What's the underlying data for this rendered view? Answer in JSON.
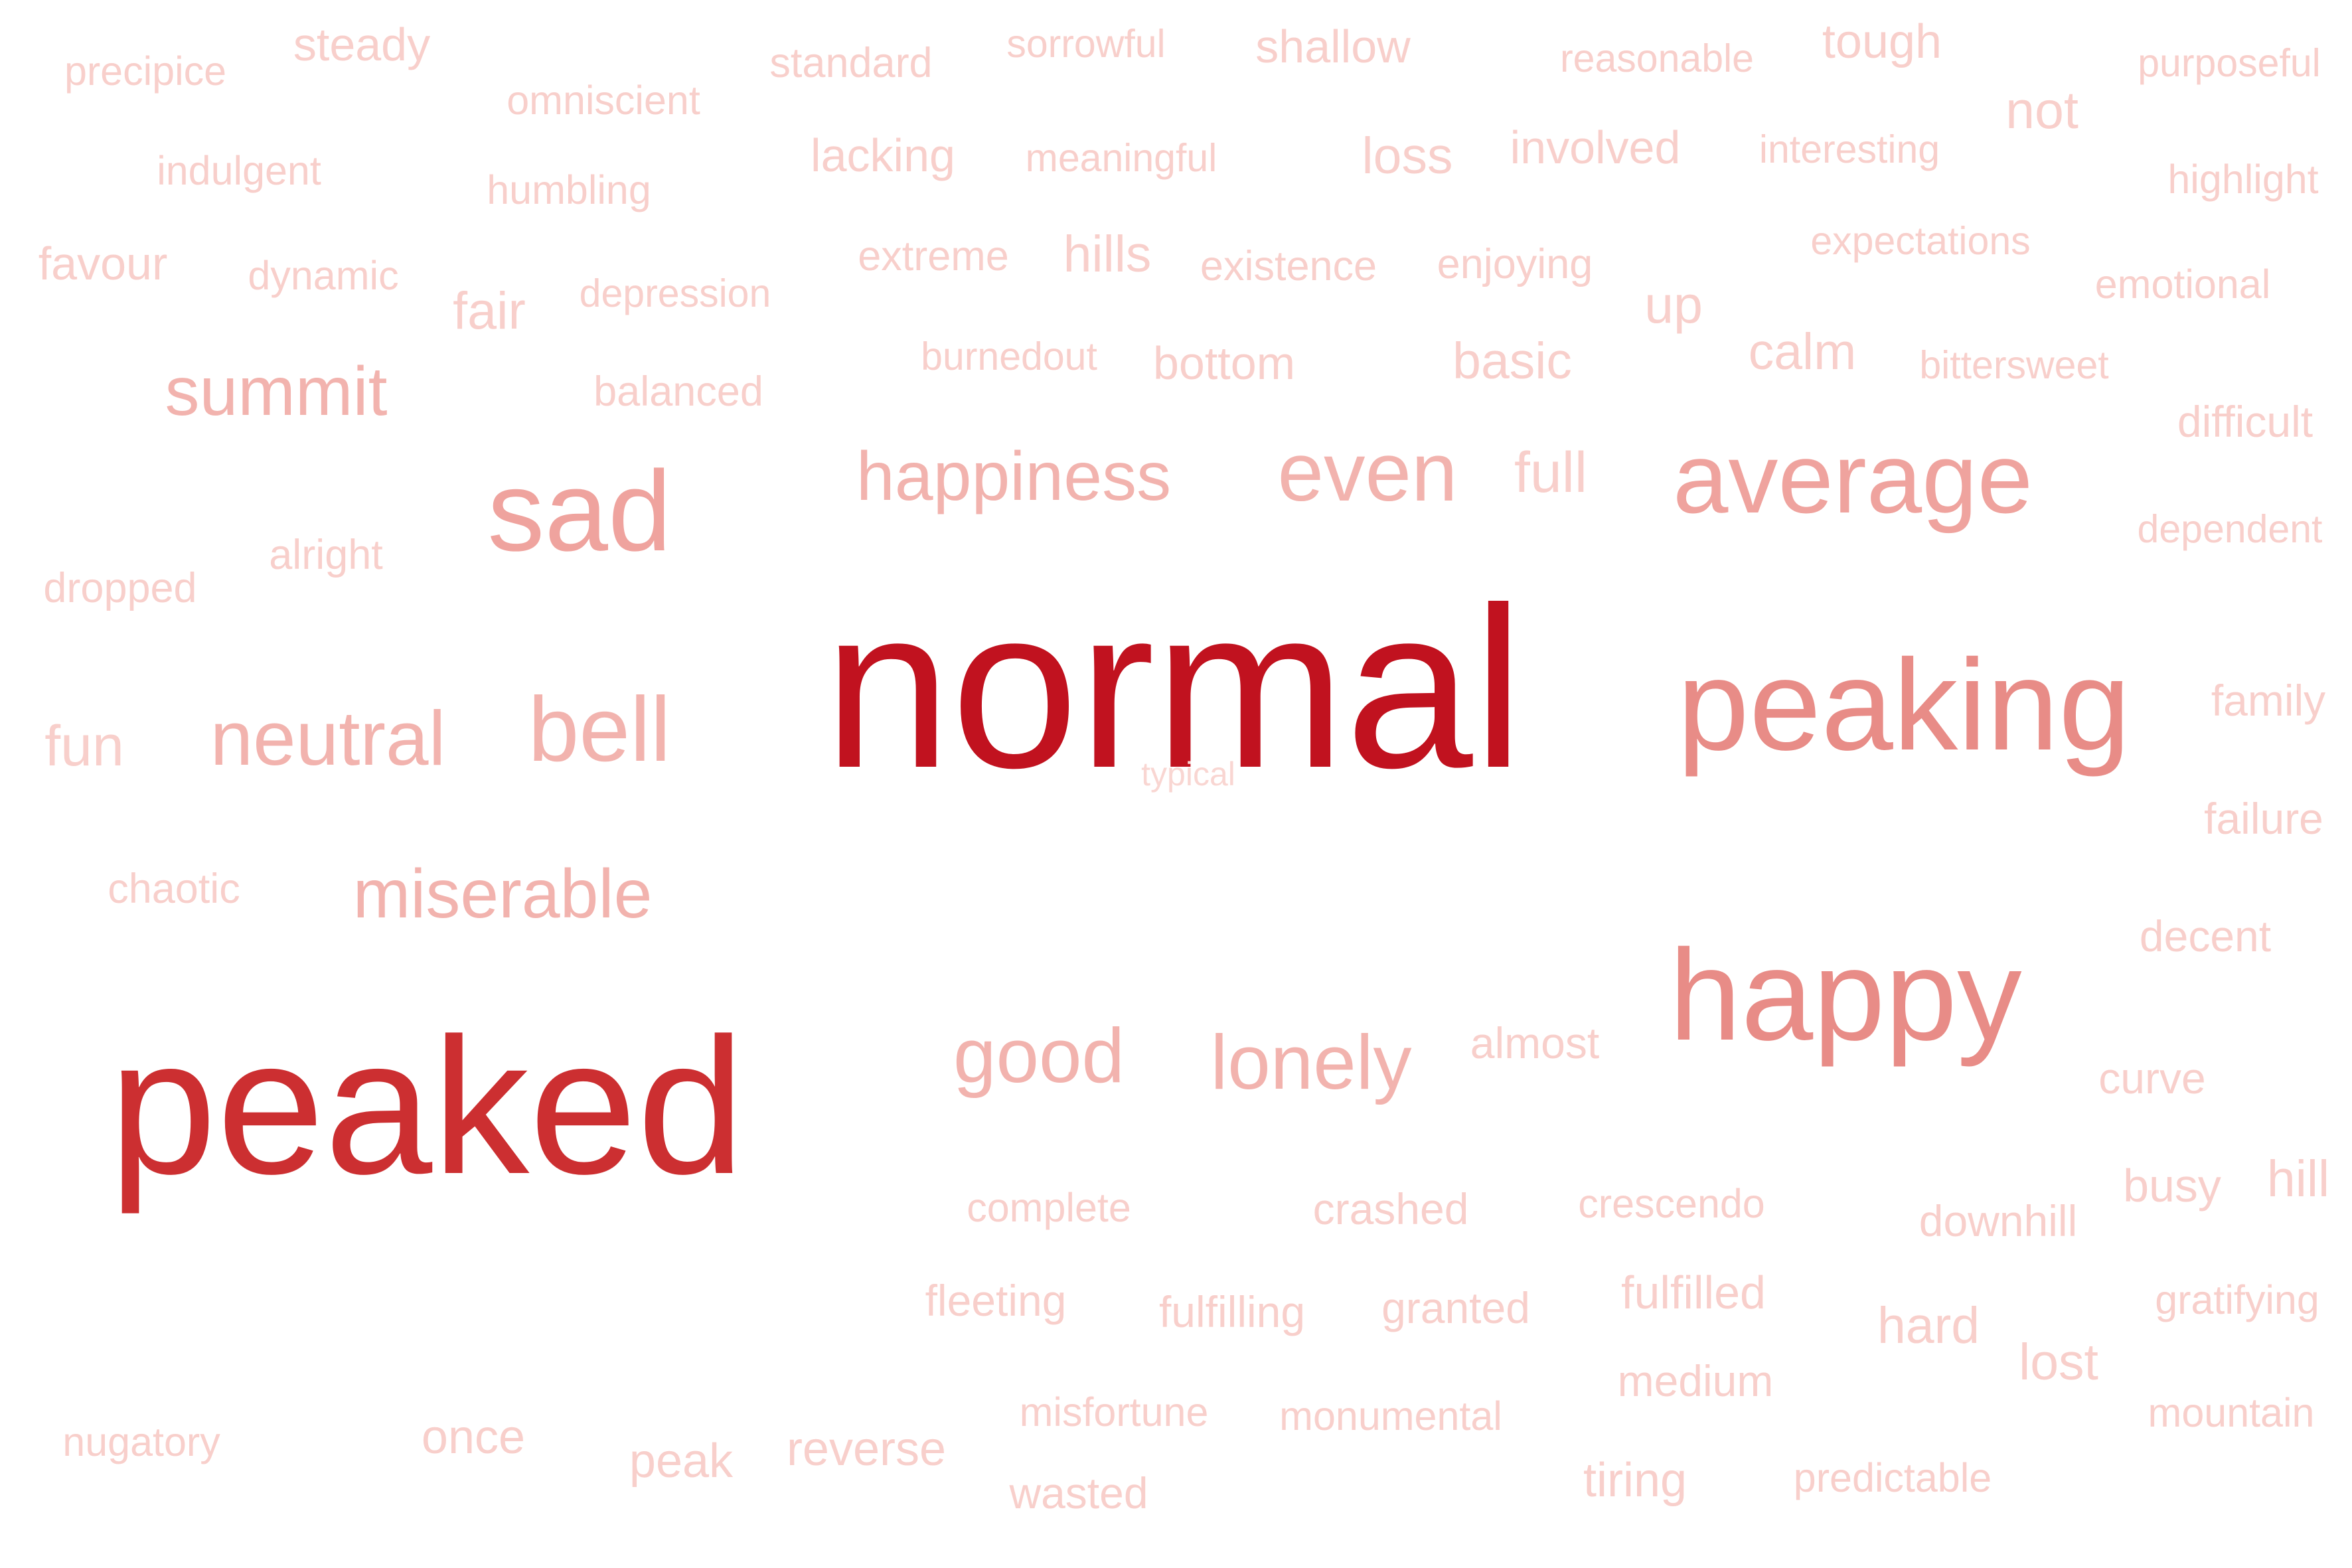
{
  "word_cloud": {
    "colors": {
      "background": "#ffffff",
      "strongest": "#c1121f",
      "strong": "#cc2f31",
      "medium": "#e88c87",
      "light": "#f2b3ae",
      "faint": "#f8cfcb"
    },
    "words": [
      {
        "text": "normal",
        "weight": 1.0,
        "color": "#c1121f"
      },
      {
        "text": "peaked",
        "weight": 0.84,
        "color": "#cc2f31"
      },
      {
        "text": "peaking",
        "weight": 0.56,
        "color": "#e88c87"
      },
      {
        "text": "happy",
        "weight": 0.56,
        "color": "#e88c87"
      },
      {
        "text": "sad",
        "weight": 0.5,
        "color": "#efa39e"
      },
      {
        "text": "average",
        "weight": 0.44,
        "color": "#efa39e"
      },
      {
        "text": "bell",
        "weight": 0.4,
        "color": "#f2b3ae"
      },
      {
        "text": "even",
        "weight": 0.36,
        "color": "#f2b3ae"
      },
      {
        "text": "neutral",
        "weight": 0.34,
        "color": "#f2b3ae"
      },
      {
        "text": "good",
        "weight": 0.34,
        "color": "#f2b3ae"
      },
      {
        "text": "lonely",
        "weight": 0.34,
        "color": "#f2b3ae"
      },
      {
        "text": "summit",
        "weight": 0.3,
        "color": "#f2b3ae"
      },
      {
        "text": "happiness",
        "weight": 0.3,
        "color": "#f2b3ae"
      },
      {
        "text": "miserable",
        "weight": 0.3,
        "color": "#f2b3ae"
      },
      {
        "text": "full",
        "weight": 0.25,
        "color": "#f8cfcb"
      },
      {
        "text": "fun",
        "weight": 0.25,
        "color": "#f8cfcb"
      },
      {
        "text": "not",
        "weight": 0.23,
        "color": "#f8cfcb"
      },
      {
        "text": "up",
        "weight": 0.23,
        "color": "#f8cfcb"
      },
      {
        "text": "fair",
        "weight": 0.23,
        "color": "#f8cfcb"
      },
      {
        "text": "loss",
        "weight": 0.22,
        "color": "#f8cfcb"
      },
      {
        "text": "hills",
        "weight": 0.22,
        "color": "#f8cfcb"
      },
      {
        "text": "basic",
        "weight": 0.22,
        "color": "#f8cfcb"
      },
      {
        "text": "calm",
        "weight": 0.22,
        "color": "#f8cfcb"
      },
      {
        "text": "hill",
        "weight": 0.22,
        "color": "#f8cfcb"
      },
      {
        "text": "hard",
        "weight": 0.22,
        "color": "#f8cfcb"
      },
      {
        "text": "lost",
        "weight": 0.22,
        "color": "#f8cfcb"
      },
      {
        "text": "once",
        "weight": 0.21,
        "color": "#f8cfcb"
      },
      {
        "text": "peak",
        "weight": 0.21,
        "color": "#f8cfcb"
      },
      {
        "text": "reverse",
        "weight": 0.21,
        "color": "#f8cfcb"
      },
      {
        "text": "tiring",
        "weight": 0.21,
        "color": "#f8cfcb"
      },
      {
        "text": "tough",
        "weight": 0.21,
        "color": "#f8cfcb"
      },
      {
        "text": "bottom",
        "weight": 0.2,
        "color": "#f8cfcb"
      },
      {
        "text": "favour",
        "weight": 0.2,
        "color": "#f8cfcb"
      },
      {
        "text": "steady",
        "weight": 0.2,
        "color": "#f8cfcb"
      },
      {
        "text": "involved",
        "weight": 0.2,
        "color": "#f8cfcb"
      },
      {
        "text": "lacking",
        "weight": 0.2,
        "color": "#f8cfcb"
      },
      {
        "text": "shallow",
        "weight": 0.2,
        "color": "#f8cfcb"
      },
      {
        "text": "busy",
        "weight": 0.2,
        "color": "#f8cfcb"
      },
      {
        "text": "fulfilled",
        "weight": 0.2,
        "color": "#f8cfcb"
      },
      {
        "text": "granted",
        "weight": 0.19,
        "color": "#f8cfcb"
      },
      {
        "text": "fulfilling",
        "weight": 0.19,
        "color": "#f8cfcb"
      },
      {
        "text": "fleeting",
        "weight": 0.19,
        "color": "#f8cfcb"
      },
      {
        "text": "crashed",
        "weight": 0.19,
        "color": "#f8cfcb"
      },
      {
        "text": "curve",
        "weight": 0.19,
        "color": "#f8cfcb"
      },
      {
        "text": "wasted",
        "weight": 0.19,
        "color": "#f8cfcb"
      },
      {
        "text": "medium",
        "weight": 0.19,
        "color": "#f8cfcb"
      },
      {
        "text": "downhill",
        "weight": 0.19,
        "color": "#f8cfcb"
      },
      {
        "text": "failure",
        "weight": 0.19,
        "color": "#f8cfcb"
      },
      {
        "text": "decent",
        "weight": 0.19,
        "color": "#f8cfcb"
      },
      {
        "text": "family",
        "weight": 0.19,
        "color": "#f8cfcb"
      },
      {
        "text": "almost",
        "weight": 0.19,
        "color": "#f8cfcb"
      },
      {
        "text": "difficult",
        "weight": 0.19,
        "color": "#f8cfcb"
      },
      {
        "text": "enjoying",
        "weight": 0.18,
        "color": "#f8cfcb"
      },
      {
        "text": "existence",
        "weight": 0.18,
        "color": "#f8cfcb"
      },
      {
        "text": "extreme",
        "weight": 0.18,
        "color": "#f8cfcb"
      },
      {
        "text": "standard",
        "weight": 0.18,
        "color": "#f8cfcb"
      },
      {
        "text": "balanced",
        "weight": 0.18,
        "color": "#f8cfcb"
      },
      {
        "text": "alright",
        "weight": 0.18,
        "color": "#f8cfcb"
      },
      {
        "text": "dropped",
        "weight": 0.18,
        "color": "#f8cfcb"
      },
      {
        "text": "chaotic",
        "weight": 0.18,
        "color": "#f8cfcb"
      },
      {
        "text": "complete",
        "weight": 0.17,
        "color": "#f8cfcb"
      },
      {
        "text": "crescendo",
        "weight": 0.17,
        "color": "#f8cfcb"
      },
      {
        "text": "gratifying",
        "weight": 0.17,
        "color": "#f8cfcb"
      },
      {
        "text": "mountain",
        "weight": 0.17,
        "color": "#f8cfcb"
      },
      {
        "text": "emotional",
        "weight": 0.17,
        "color": "#f8cfcb"
      },
      {
        "text": "highlight",
        "weight": 0.17,
        "color": "#f8cfcb"
      },
      {
        "text": "misfortune",
        "weight": 0.17,
        "color": "#f8cfcb"
      },
      {
        "text": "monumental",
        "weight": 0.17,
        "color": "#f8cfcb"
      },
      {
        "text": "predictable",
        "weight": 0.17,
        "color": "#f8cfcb"
      },
      {
        "text": "nugatory",
        "weight": 0.17,
        "color": "#f8cfcb"
      },
      {
        "text": "precipice",
        "weight": 0.17,
        "color": "#f8cfcb"
      },
      {
        "text": "indulgent",
        "weight": 0.17,
        "color": "#f8cfcb"
      },
      {
        "text": "dynamic",
        "weight": 0.17,
        "color": "#f8cfcb"
      },
      {
        "text": "humbling",
        "weight": 0.17,
        "color": "#f8cfcb"
      },
      {
        "text": "omniscient",
        "weight": 0.17,
        "color": "#f8cfcb"
      },
      {
        "text": "depression",
        "weight": 0.16,
        "color": "#f8cfcb"
      },
      {
        "text": "sorrowful",
        "weight": 0.16,
        "color": "#f8cfcb"
      },
      {
        "text": "meaningful",
        "weight": 0.16,
        "color": "#f8cfcb"
      },
      {
        "text": "burnedout",
        "weight": 0.16,
        "color": "#f8cfcb"
      },
      {
        "text": "reasonable",
        "weight": 0.16,
        "color": "#f8cfcb"
      },
      {
        "text": "interesting",
        "weight": 0.16,
        "color": "#f8cfcb"
      },
      {
        "text": "bittersweet",
        "weight": 0.16,
        "color": "#f8cfcb"
      },
      {
        "text": "expectations",
        "weight": 0.16,
        "color": "#f8cfcb"
      },
      {
        "text": "purposeful",
        "weight": 0.16,
        "color": "#f8cfcb"
      },
      {
        "text": "dependent",
        "weight": 0.16,
        "color": "#f8cfcb"
      },
      {
        "text": "typical",
        "weight": 0.14,
        "color": "#f9d6d2"
      }
    ]
  }
}
